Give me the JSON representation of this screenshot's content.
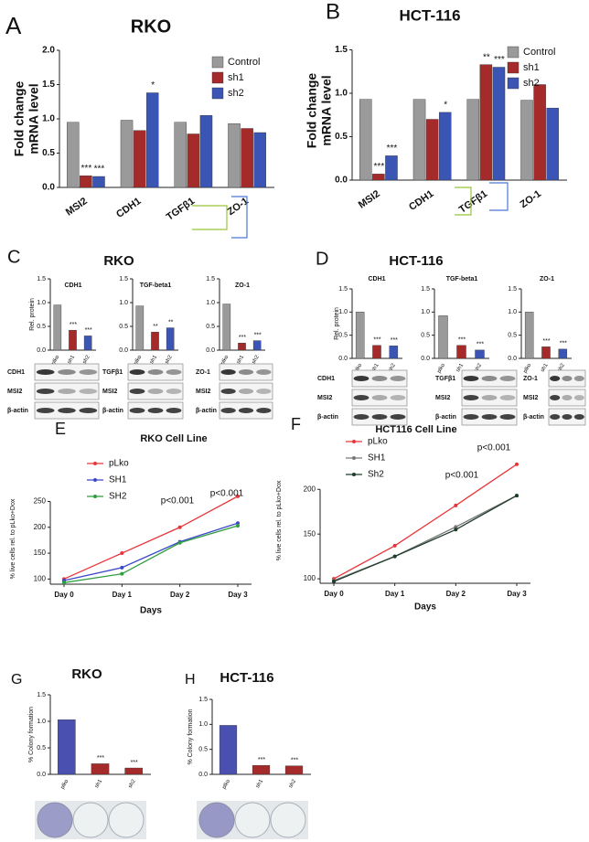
{
  "chart_data": [
    {
      "type": "bar",
      "panel": "A",
      "title": "RKO",
      "ylabel": [
        "Fold change",
        "mRNA level"
      ],
      "categories": [
        "MSI2",
        "CDH1",
        "TGFβ1",
        "ZO-1"
      ],
      "series": [
        {
          "name": "Control",
          "color": "#9a9a9a",
          "values": [
            0.95,
            0.98,
            0.95,
            0.93
          ],
          "significance": [
            null,
            null,
            null,
            null
          ]
        },
        {
          "name": "sh1",
          "color": "#a52a2a",
          "values": [
            0.17,
            0.83,
            0.78,
            0.86
          ],
          "significance": [
            "***",
            null,
            null,
            null
          ]
        },
        {
          "name": "sh2",
          "color": "#3a55b4",
          "values": [
            0.16,
            1.38,
            1.05,
            0.8
          ],
          "significance": [
            "***",
            "*",
            null,
            null
          ]
        }
      ],
      "ylim": [
        0,
        2
      ],
      "yticks": [
        {
          "value": 0,
          "label": "0.0"
        },
        0.5,
        {
          "value": 1,
          "label": "1.0"
        },
        1.5,
        {
          "value": 2,
          "label": "2.0"
        }
      ],
      "legend": "upper right"
    },
    {
      "type": "bar",
      "panel": "B",
      "title": "HCT-116",
      "ylabel": [
        "Fold change",
        "mRNA level"
      ],
      "categories": [
        "MSI2",
        "CDH1",
        "TGFβ1",
        "ZO-1"
      ],
      "series": [
        {
          "name": "Control",
          "color": "#9a9a9a",
          "values": [
            0.93,
            0.93,
            0.93,
            0.92
          ],
          "significance": [
            null,
            null,
            null,
            null
          ]
        },
        {
          "name": "sh1",
          "color": "#a52a2a",
          "values": [
            0.07,
            0.7,
            1.33,
            1.1
          ],
          "significance": [
            "***",
            null,
            "**",
            null
          ]
        },
        {
          "name": "sh2",
          "color": "#3a55b4",
          "values": [
            0.28,
            0.78,
            1.3,
            0.83
          ],
          "significance": [
            "***",
            "*",
            "***",
            null
          ]
        }
      ],
      "ylim": [
        0,
        1.6
      ],
      "yticks": [
        {
          "value": 0,
          "label": "0.0"
        },
        0.5,
        {
          "value": 1,
          "label": "1.0"
        },
        1.5
      ],
      "legend": "upper right"
    },
    {
      "type": "bar",
      "panel": "C",
      "panel_title": "RKO",
      "title": "CDH1",
      "ylabel": "Rel. protein",
      "categories": [
        "plko",
        "sh1",
        "sh2"
      ],
      "values": [
        0.95,
        0.42,
        0.3
      ],
      "colors": [
        "#9a9a9a",
        "#a52a2a",
        "#3a55b4"
      ],
      "significance": [
        null,
        "***",
        "***"
      ],
      "ylim": [
        0,
        1.5
      ],
      "yticks": [
        {
          "value": 0,
          "label": "0.0"
        },
        0.5,
        {
          "value": 1,
          "label": "1.0"
        },
        1.5
      ]
    },
    {
      "type": "bar",
      "title": "TGF-beta1",
      "categories": [
        "plko",
        "sh1",
        "sh2"
      ],
      "values": [
        0.93,
        0.38,
        0.47
      ],
      "colors": [
        "#9a9a9a",
        "#a52a2a",
        "#3a55b4"
      ],
      "significance": [
        null,
        "**",
        "**"
      ],
      "ylim": [
        0,
        1.5
      ],
      "yticks": [
        {
          "value": 0,
          "label": "0.0"
        },
        0.5,
        {
          "value": 1,
          "label": "1.0"
        },
        1.5
      ]
    },
    {
      "type": "bar",
      "title": "ZO-1",
      "categories": [
        "plko",
        "sh1",
        "sh2"
      ],
      "values": [
        0.97,
        0.15,
        0.2
      ],
      "colors": [
        "#9a9a9a",
        "#a52a2a",
        "#3a55b4"
      ],
      "significance": [
        null,
        "***",
        "***"
      ],
      "ylim": [
        0,
        1.5
      ],
      "yticks": [
        {
          "value": 0,
          "label": "0.0"
        },
        0.5,
        {
          "value": 1,
          "label": "1.0"
        },
        1.5
      ]
    },
    {
      "type": "bar",
      "panel": "D",
      "panel_title": "HCT-116",
      "title": "CDH1",
      "ylabel": "Rel. protein",
      "categories": [
        "plko",
        "sh1",
        "sh2"
      ],
      "values": [
        1.0,
        0.28,
        0.27
      ],
      "colors": [
        "#9a9a9a",
        "#a52a2a",
        "#3a55b4"
      ],
      "significance": [
        null,
        "***",
        "***"
      ],
      "ylim": [
        0,
        1.5
      ],
      "yticks": [
        {
          "value": 0,
          "label": "0.0"
        },
        0.5,
        {
          "value": 1,
          "label": "1.0"
        },
        1.5
      ]
    },
    {
      "type": "bar",
      "title": "TGF-beta1",
      "categories": [
        "plko",
        "sh1",
        "sh2"
      ],
      "values": [
        0.92,
        0.28,
        0.18
      ],
      "colors": [
        "#9a9a9a",
        "#a52a2a",
        "#3a55b4"
      ],
      "significance": [
        null,
        "***",
        "***"
      ],
      "ylim": [
        0,
        1.5
      ],
      "yticks": [
        {
          "value": 0,
          "label": "0.0"
        },
        0.5,
        {
          "value": 1,
          "label": "1.0"
        },
        1.5
      ]
    },
    {
      "type": "bar",
      "title": "ZO-1",
      "categories": [
        "plko",
        "sh1",
        "sh2"
      ],
      "values": [
        1.0,
        0.25,
        0.2
      ],
      "colors": [
        "#9a9a9a",
        "#a52a2a",
        "#3a55b4"
      ],
      "significance": [
        null,
        "***",
        "***"
      ],
      "ylim": [
        0,
        1.5
      ],
      "yticks": [
        {
          "value": 0,
          "label": "0.0"
        },
        0.5,
        {
          "value": 1,
          "label": "1.0"
        },
        1.5
      ]
    },
    {
      "type": "line",
      "panel": "E",
      "title": "RKO Cell Line",
      "xlabel": "Days",
      "ylabel": "% live cells rel. to pLko+Dox",
      "categories": [
        "Day 0",
        "Day 1",
        "Day 2",
        "Day 3"
      ],
      "series": [
        {
          "name": "pLko",
          "color": "#e8343a",
          "values": [
            100,
            150,
            200,
            260
          ]
        },
        {
          "name": "SH1",
          "color": "#3a49c8",
          "values": [
            97,
            122,
            172,
            208
          ]
        },
        {
          "name": "SH2",
          "color": "#2e9e3e",
          "values": [
            93,
            110,
            170,
            203
          ]
        }
      ],
      "annotations": [
        "p<0.001",
        "p<0.001"
      ],
      "ylim": [
        90,
        265
      ],
      "yticks": [
        100,
        150,
        200,
        250
      ],
      "legend": "upper left"
    },
    {
      "type": "line",
      "panel": "F",
      "title": "HCT116 Cell Line",
      "xlabel": "Days",
      "ylabel": "% live cells rel. to pLko+Dox",
      "categories": [
        "Day 0",
        "Day 1",
        "Day 2",
        "Day 3"
      ],
      "series": [
        {
          "name": "pLko",
          "color": "#e8343a",
          "values": [
            100,
            137,
            182,
            228
          ]
        },
        {
          "name": "SH1",
          "color": "#777777",
          "values": [
            98,
            125,
            158,
            193
          ]
        },
        {
          "name": "Sh2",
          "color": "#1f3d2b",
          "values": [
            97,
            125,
            155,
            193
          ]
        }
      ],
      "annotations": [
        "p<0.001",
        "p<0.001"
      ],
      "ylim": [
        95,
        235
      ],
      "yticks": [
        100,
        150,
        200
      ],
      "legend": "upper left"
    },
    {
      "type": "bar",
      "panel": "G",
      "title": "RKO",
      "ylabel": "% Colony formation",
      "categories": [
        "plko",
        "sh1",
        "sh2"
      ],
      "values": [
        1.03,
        0.2,
        0.12
      ],
      "colors": [
        "#4a50b0",
        "#a52a2a",
        "#a52a2a"
      ],
      "significance": [
        null,
        "***",
        "***"
      ],
      "ylim": [
        0,
        1.5
      ],
      "yticks": [
        {
          "value": 0,
          "label": "0.0"
        },
        0.5,
        {
          "value": 1,
          "label": "1.0"
        },
        1.5
      ]
    },
    {
      "type": "bar",
      "panel": "H",
      "title": "HCT-116",
      "ylabel": "% Colony formation",
      "categories": [
        "plko",
        "sh1",
        "sh2"
      ],
      "values": [
        0.98,
        0.18,
        0.17
      ],
      "colors": [
        "#4a50b0",
        "#a52a2a",
        "#a52a2a"
      ],
      "significance": [
        null,
        "***",
        "***"
      ],
      "ylim": [
        0,
        1.5
      ],
      "yticks": [
        {
          "value": 0,
          "label": "0.0"
        },
        0.5,
        {
          "value": 1,
          "label": "1.0"
        },
        1.5
      ]
    }
  ],
  "blots": [
    {
      "labels": [
        "CDH1",
        "MSI2",
        "β-actin"
      ]
    },
    {
      "labels": [
        "TGFβ1",
        "MSI2",
        "β-actin"
      ]
    },
    {
      "labels": [
        "ZO-1",
        "MSI2",
        "β-actin"
      ]
    },
    {
      "labels": [
        "CDH1",
        "MSI2",
        "β-actin"
      ]
    },
    {
      "labels": [
        "TGFβ1",
        "MSI2",
        "β-actin"
      ]
    },
    {
      "labels": [
        "ZO-1",
        "MSI2",
        "β-actin"
      ]
    }
  ]
}
